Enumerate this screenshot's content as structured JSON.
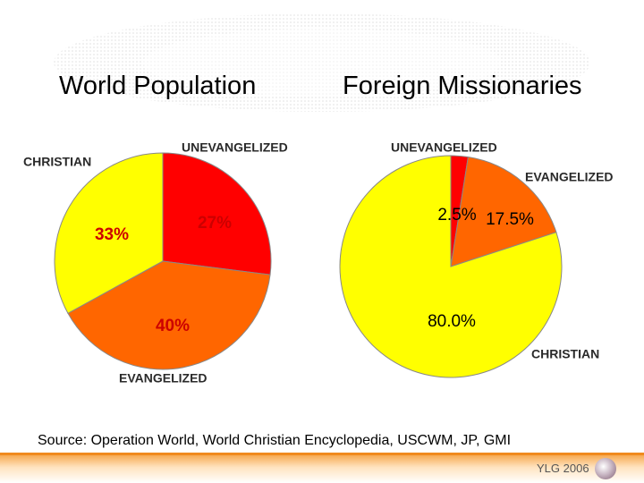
{
  "headings": {
    "left": "World Population",
    "right": "Foreign Missionaries"
  },
  "chart_data": [
    {
      "type": "pie",
      "title": "World Population",
      "slices": [
        {
          "name": "UNEVANGELIZED",
          "value": 27,
          "label": "27%",
          "color": "#ff0000"
        },
        {
          "name": "EVANGELIZED",
          "value": 40,
          "label": "40%",
          "color": "#ff6600"
        },
        {
          "name": "CHRISTIAN",
          "value": 33,
          "label": "33%",
          "color": "#ffff00"
        }
      ]
    },
    {
      "type": "pie",
      "title": "Foreign Missionaries",
      "slices": [
        {
          "name": "UNEVANGELIZED",
          "value": 2.5,
          "label": "2.5%",
          "color": "#ff0000"
        },
        {
          "name": "EVANGELIZED",
          "value": 17.5,
          "label": "17.5%",
          "color": "#ff6600"
        },
        {
          "name": "CHRISTIAN",
          "value": 80.0,
          "label": "80.0%",
          "color": "#ffff00"
        }
      ]
    }
  ],
  "source": "Source:  Operation World, World Christian Encyclopedia, USCWM, JP, GMI",
  "brand": "YLG 2006",
  "colors": {
    "footer_accent": "#f08a1e",
    "pie_outline": "#888888"
  },
  "icons": {
    "brand_logo": "purple-disc-icon"
  }
}
